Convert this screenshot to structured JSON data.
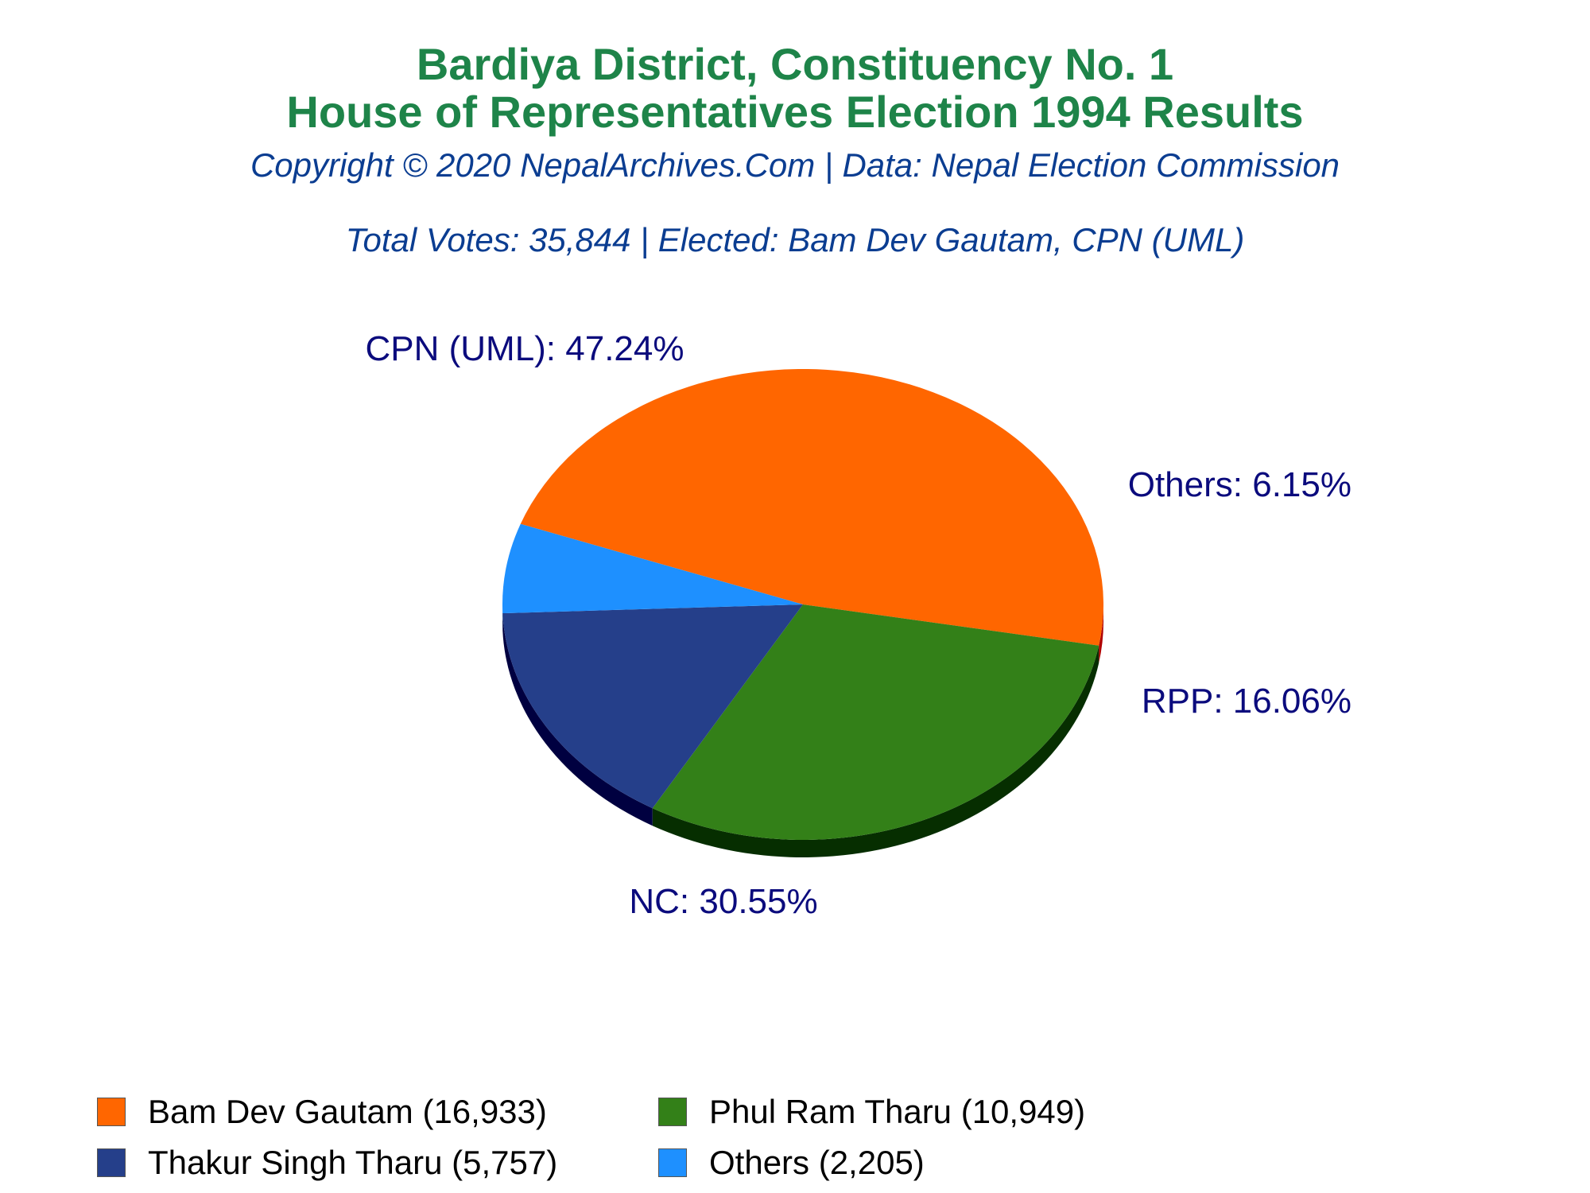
{
  "header": {
    "title_line1": "Bardiya District, Constituency No. 1",
    "title_line2": "House of Representatives Election 1994 Results",
    "copyright": "Copyright © 2020 NepalArchives.Com | Data: Nepal Election Commission",
    "summary": "Total Votes: 35,844 | Elected: Bam Dev Gautam, CPN (UML)"
  },
  "chart_data": {
    "type": "pie",
    "title": "Bardiya District, Constituency No. 1 House of Representatives Election 1994 Results",
    "slices": [
      {
        "party": "CPN (UML)",
        "candidate": "Bam Dev Gautam",
        "votes": 16933,
        "percent": 47.24,
        "label": "CPN (UML): 47.24%",
        "legend": "Bam Dev Gautam (16,933)",
        "color": "#ff6600",
        "side_color": "#b00000"
      },
      {
        "party": "NC",
        "candidate": "Phul Ram Tharu",
        "votes": 10949,
        "percent": 30.55,
        "label": "NC: 30.55%",
        "legend": "Phul Ram Tharu (10,949)",
        "color": "#338018",
        "side_color": "#062e00"
      },
      {
        "party": "RPP",
        "candidate": "Thakur Singh Tharu",
        "votes": 5757,
        "percent": 16.06,
        "label": "RPP: 16.06%",
        "legend": "Thakur Singh Tharu (5,757)",
        "color": "#253f8a",
        "side_color": "#000040"
      },
      {
        "party": "Others",
        "candidate": "Others",
        "votes": 2205,
        "percent": 6.15,
        "label": "Others: 6.15%",
        "legend": "Others (2,205)",
        "color": "#1e90ff",
        "side_color": "#0b4f9a"
      }
    ],
    "legend_position": "bottom",
    "label_color": "#0b0b7d"
  }
}
